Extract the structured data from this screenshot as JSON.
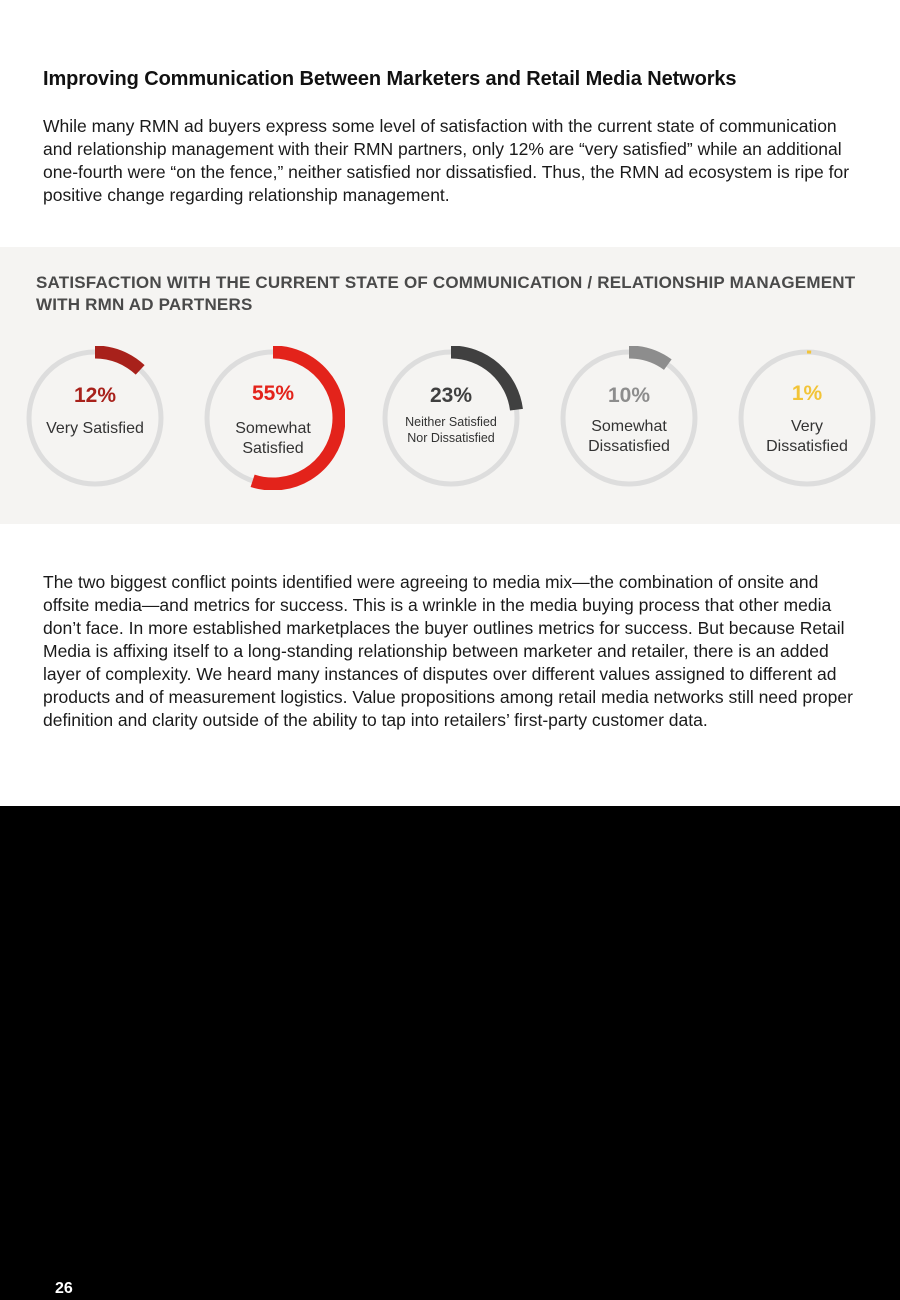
{
  "heading": "Improving Communication Between Marketers and Retail Media Networks",
  "intro_paragraph": "While many RMN ad buyers express some level of satisfaction with the current state of communication and relationship management with their RMN partners, only 12% are “very satisfied” while an additional one-fourth were “on the fence,” neither satisfied nor dissatisfied. Thus, the RMN ad ecosystem is ripe for positive change regarding relationship management.",
  "chart_data": {
    "type": "donut",
    "title": "SATISFACTION WITH THE CURRENT STATE OF COMMUNICATION / RELATIONSHIP MANAGEMENT WITH RMN AD PARTNERS",
    "items": [
      {
        "value": 12,
        "value_label": "12%",
        "label": "Very Satisfied",
        "color": "#a8211b"
      },
      {
        "value": 55,
        "value_label": "55%",
        "label": "Somewhat Satisfied",
        "color": "#e3231b"
      },
      {
        "value": 23,
        "value_label": "23%",
        "label": "Neither Satisfied Nor Dissatisfied",
        "color": "#404040"
      },
      {
        "value": 10,
        "value_label": "10%",
        "label": "Somewhat Dissatisfied",
        "color": "#8d8d8d"
      },
      {
        "value": 1,
        "value_label": "1%",
        "label": "Very Dissatisfied",
        "color": "#f2c438"
      }
    ],
    "track_color": "#dddddd"
  },
  "body_paragraph": "The two biggest conflict points identified were agreeing to media mix—the combination of onsite and offsite media—and metrics for success. This is a wrinkle in the media buying process that other media don’t face. In more established marketplaces the buyer outlines metrics for success. But because Retail Media is affixing itself to a long-standing relationship between marketer and retailer, there is an added layer of complexity. We heard many instances of disputes over different values assigned to different ad products and of measurement logistics. Value propositions among retail media networks still need proper definition and clarity outside of the ability to tap into retailers’ first-party customer data.",
  "page_number": "26"
}
